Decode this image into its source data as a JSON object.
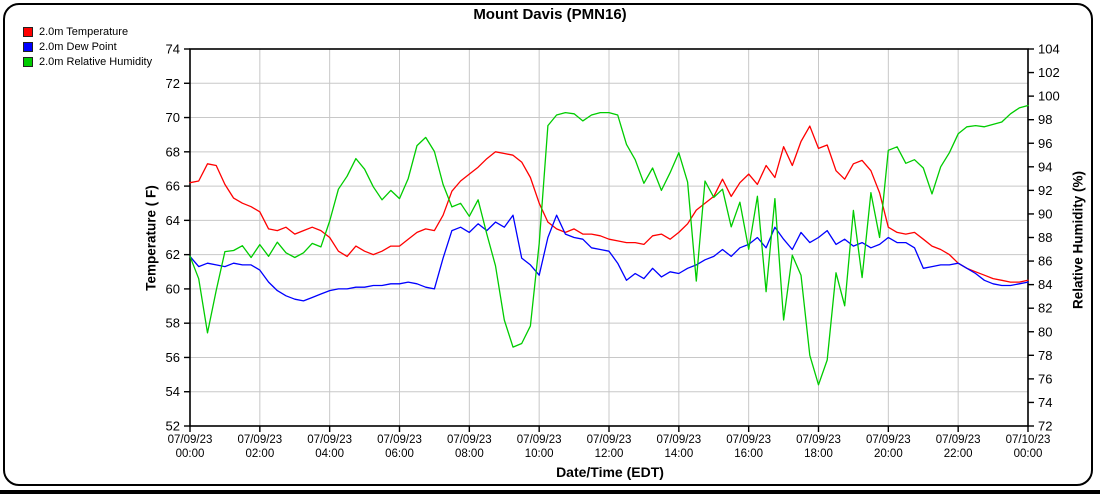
{
  "title": "Mount Davis (PMN16)",
  "legend": {
    "items": [
      {
        "label": "2.0m Temperature",
        "color": "#ff0000"
      },
      {
        "label": "2.0m Dew Point",
        "color": "#0000ff"
      },
      {
        "label": "2.0m Relative Humidity",
        "color": "#00cc00"
      }
    ]
  },
  "chart_data": {
    "type": "line",
    "title": "Mount Davis (PMN16)",
    "x_label": "Date/Time (EDT)",
    "y_left": {
      "label": "Temperature ( F)",
      "range": [
        52,
        74
      ],
      "tick_step": 2
    },
    "y_right": {
      "label": "Relative Humidity (%)",
      "range": [
        72,
        104
      ],
      "tick_step": 2
    },
    "grid": true,
    "legend_position": "top-left",
    "x_range_hours": [
      0,
      24
    ],
    "x_ticks": [
      {
        "hour": 0,
        "date": "07/09/23",
        "time": "00:00"
      },
      {
        "hour": 2,
        "date": "07/09/23",
        "time": "02:00"
      },
      {
        "hour": 4,
        "date": "07/09/23",
        "time": "04:00"
      },
      {
        "hour": 6,
        "date": "07/09/23",
        "time": "06:00"
      },
      {
        "hour": 8,
        "date": "07/09/23",
        "time": "08:00"
      },
      {
        "hour": 10,
        "date": "07/09/23",
        "time": "10:00"
      },
      {
        "hour": 12,
        "date": "07/09/23",
        "time": "12:00"
      },
      {
        "hour": 14,
        "date": "07/09/23",
        "time": "14:00"
      },
      {
        "hour": 16,
        "date": "07/09/23",
        "time": "16:00"
      },
      {
        "hour": 18,
        "date": "07/09/23",
        "time": "18:00"
      },
      {
        "hour": 20,
        "date": "07/09/23",
        "time": "20:00"
      },
      {
        "hour": 22,
        "date": "07/09/23",
        "time": "22:00"
      },
      {
        "hour": 24,
        "date": "07/10/23",
        "time": "00:00"
      }
    ],
    "x": {
      "start_hour": 0,
      "step_hour": 0.25,
      "count": 97
    },
    "series": [
      {
        "name": "2.0m Temperature",
        "axis": "left",
        "color": "#ff0000",
        "values": [
          66.2,
          66.3,
          67.3,
          67.2,
          66.1,
          65.3,
          65.0,
          64.8,
          64.5,
          63.5,
          63.4,
          63.6,
          63.2,
          63.4,
          63.6,
          63.4,
          63.0,
          62.2,
          61.9,
          62.5,
          62.2,
          62.0,
          62.2,
          62.5,
          62.5,
          62.9,
          63.3,
          63.5,
          63.4,
          64.3,
          65.7,
          66.3,
          66.7,
          67.1,
          67.6,
          68.0,
          67.9,
          67.8,
          67.4,
          66.5,
          65.0,
          63.9,
          63.5,
          63.3,
          63.5,
          63.2,
          63.2,
          63.1,
          62.9,
          62.8,
          62.7,
          62.7,
          62.6,
          63.1,
          63.2,
          62.9,
          63.3,
          63.8,
          64.6,
          65.0,
          65.4,
          66.4,
          65.4,
          66.2,
          66.7,
          66.1,
          67.2,
          66.5,
          68.3,
          67.2,
          68.6,
          69.5,
          68.2,
          68.4,
          66.9,
          66.4,
          67.3,
          67.5,
          66.9,
          65.6,
          63.6,
          63.3,
          63.2,
          63.3,
          62.9,
          62.5,
          62.3,
          62.0,
          61.5,
          61.2,
          61.0,
          60.8,
          60.6,
          60.5,
          60.4,
          60.4,
          60.5
        ]
      },
      {
        "name": "2.0m Dew Point",
        "axis": "left",
        "color": "#0000ff",
        "values": [
          61.9,
          61.3,
          61.5,
          61.4,
          61.3,
          61.5,
          61.4,
          61.4,
          61.1,
          60.4,
          59.9,
          59.6,
          59.4,
          59.3,
          59.5,
          59.7,
          59.9,
          60.0,
          60.0,
          60.1,
          60.1,
          60.2,
          60.2,
          60.3,
          60.3,
          60.4,
          60.3,
          60.1,
          60.0,
          61.8,
          63.4,
          63.6,
          63.3,
          63.8,
          63.4,
          63.9,
          63.6,
          64.3,
          61.8,
          61.4,
          60.8,
          63.0,
          64.3,
          63.2,
          63.0,
          62.9,
          62.4,
          62.3,
          62.2,
          61.5,
          60.5,
          60.9,
          60.6,
          61.2,
          60.7,
          61.0,
          60.9,
          61.2,
          61.4,
          61.7,
          61.9,
          62.3,
          61.9,
          62.4,
          62.6,
          63.0,
          62.4,
          63.6,
          62.9,
          62.3,
          63.3,
          62.7,
          63.0,
          63.4,
          62.6,
          62.9,
          62.5,
          62.7,
          62.4,
          62.6,
          63.0,
          62.7,
          62.7,
          62.4,
          61.2,
          61.3,
          61.4,
          61.4,
          61.5,
          61.2,
          60.9,
          60.5,
          60.3,
          60.2,
          60.2,
          60.3,
          60.4
        ]
      },
      {
        "name": "2.0m Relative Humidity",
        "axis": "right",
        "color": "#00cc00",
        "values": [
          86.4,
          84.5,
          79.9,
          83.5,
          86.8,
          86.9,
          87.3,
          86.3,
          87.4,
          86.4,
          87.6,
          86.7,
          86.3,
          86.7,
          87.5,
          87.2,
          89.4,
          92.1,
          93.2,
          94.7,
          93.8,
          92.3,
          91.2,
          92.0,
          91.3,
          93.0,
          95.8,
          96.5,
          95.3,
          92.5,
          90.6,
          90.9,
          89.8,
          91.2,
          88.3,
          85.6,
          81.0,
          78.7,
          79.0,
          80.5,
          87.5,
          97.5,
          98.4,
          98.6,
          98.5,
          97.9,
          98.4,
          98.6,
          98.6,
          98.4,
          95.9,
          94.6,
          92.6,
          93.9,
          92.0,
          93.5,
          95.2,
          92.7,
          84.3,
          92.8,
          91.4,
          92.1,
          88.9,
          91.0,
          87.0,
          91.5,
          83.4,
          91.3,
          81.0,
          86.5,
          84.8,
          78.0,
          75.5,
          77.6,
          85.0,
          82.2,
          90.3,
          84.6,
          91.8,
          88.0,
          95.4,
          95.7,
          94.3,
          94.6,
          93.9,
          91.7,
          94.0,
          95.2,
          96.8,
          97.4,
          97.5,
          97.4,
          97.6,
          97.8,
          98.5,
          99.0,
          99.2
        ]
      }
    ],
    "style": {
      "grid_color": "#c8c8c8",
      "axis_color": "#000000",
      "background": "#ffffff"
    }
  }
}
